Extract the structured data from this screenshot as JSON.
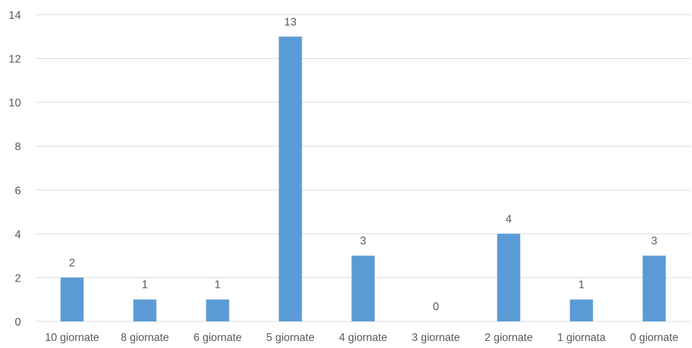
{
  "chart_data": {
    "type": "bar",
    "categories": [
      "10 giornate",
      "8 giornate",
      "6 giornate",
      "5 giornate",
      "4 giornate",
      "3 giornate",
      "2 giornate",
      "1 giornata",
      "0 giornate"
    ],
    "values": [
      2,
      1,
      1,
      13,
      3,
      0,
      4,
      1,
      3
    ],
    "data_labels": [
      "2",
      "1",
      "1",
      "13",
      "3",
      "0",
      "4",
      "1",
      "3"
    ],
    "ylim": [
      0,
      14
    ],
    "yticks": [
      0,
      2,
      4,
      6,
      8,
      10,
      12,
      14
    ],
    "ytick_labels": [
      "0",
      "2",
      "4",
      "6",
      "8",
      "10",
      "12",
      "14"
    ],
    "title": "",
    "xlabel": "",
    "ylabel": "",
    "grid": true,
    "legend": "none",
    "bar_color": "#5b9bd5",
    "text_color": "#595959",
    "grid_color": "#d9d9d9"
  }
}
